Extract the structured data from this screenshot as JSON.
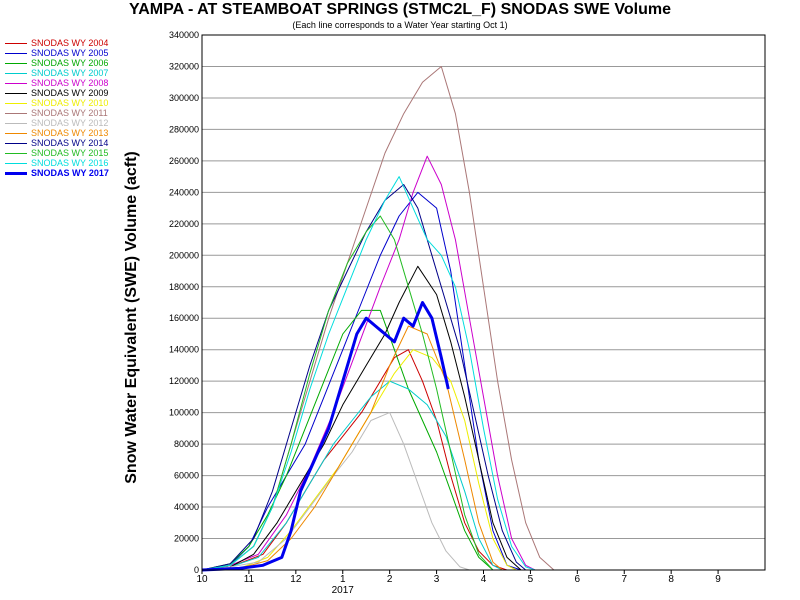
{
  "chart_data": {
    "type": "line",
    "title": "YAMPA - AT STEAMBOAT SPRINGS (STMC2L_F) SNODAS SWE Volume",
    "subtitle": "(Each line corresponds to a Water Year starting Oct 1)",
    "ylabel": "Snow Water Equivalent (SWE) Volume (acft)",
    "xlabel": "",
    "x_ticks": [
      "10",
      "11",
      "12",
      "1",
      "2",
      "3",
      "4",
      "5",
      "6",
      "7",
      "8",
      "9"
    ],
    "x_year_label": "2017",
    "y_ticks": [
      0,
      20000,
      40000,
      60000,
      80000,
      100000,
      120000,
      140000,
      160000,
      180000,
      200000,
      220000,
      240000,
      260000,
      280000,
      300000,
      320000,
      340000
    ],
    "ylim": [
      0,
      340000
    ],
    "xlim": [
      0,
      12
    ],
    "grid": "horizontal",
    "legend_position": "left",
    "series": [
      {
        "name": "SNODAS WY 2004",
        "color": "#cc0000",
        "width": 1,
        "points": [
          [
            0,
            0
          ],
          [
            0.6,
            2000
          ],
          [
            1.3,
            10000
          ],
          [
            1.8,
            30000
          ],
          [
            2.2,
            50000
          ],
          [
            2.6,
            70000
          ],
          [
            3,
            85000
          ],
          [
            3.4,
            100000
          ],
          [
            3.8,
            120000
          ],
          [
            4.1,
            135000
          ],
          [
            4.4,
            140000
          ],
          [
            4.7,
            120000
          ],
          [
            5,
            95000
          ],
          [
            5.3,
            60000
          ],
          [
            5.6,
            30000
          ],
          [
            5.9,
            12000
          ],
          [
            6.2,
            3000
          ],
          [
            6.5,
            0
          ]
        ]
      },
      {
        "name": "SNODAS WY 2005",
        "color": "#0000cc",
        "width": 1,
        "points": [
          [
            0,
            0
          ],
          [
            0.6,
            3000
          ],
          [
            1,
            15000
          ],
          [
            1.4,
            40000
          ],
          [
            1.8,
            60000
          ],
          [
            2.2,
            80000
          ],
          [
            2.6,
            110000
          ],
          [
            3,
            140000
          ],
          [
            3.4,
            170000
          ],
          [
            3.8,
            200000
          ],
          [
            4.2,
            225000
          ],
          [
            4.6,
            240000
          ],
          [
            5,
            230000
          ],
          [
            5.3,
            190000
          ],
          [
            5.6,
            130000
          ],
          [
            5.9,
            70000
          ],
          [
            6.2,
            25000
          ],
          [
            6.5,
            3000
          ],
          [
            6.8,
            0
          ]
        ]
      },
      {
        "name": "SNODAS WY 2006",
        "color": "#00aa00",
        "width": 1,
        "points": [
          [
            0,
            0
          ],
          [
            0.6,
            4000
          ],
          [
            1,
            15000
          ],
          [
            1.4,
            35000
          ],
          [
            1.8,
            60000
          ],
          [
            2.2,
            90000
          ],
          [
            2.6,
            120000
          ],
          [
            3,
            150000
          ],
          [
            3.4,
            165000
          ],
          [
            3.8,
            165000
          ],
          [
            4.1,
            140000
          ],
          [
            4.4,
            115000
          ],
          [
            4.7,
            95000
          ],
          [
            5,
            75000
          ],
          [
            5.3,
            50000
          ],
          [
            5.6,
            25000
          ],
          [
            5.9,
            8000
          ],
          [
            6.2,
            0
          ]
        ]
      },
      {
        "name": "SNODAS WY 2007",
        "color": "#00cccc",
        "width": 1,
        "points": [
          [
            0,
            0
          ],
          [
            0.6,
            2000
          ],
          [
            1.2,
            8000
          ],
          [
            1.8,
            30000
          ],
          [
            2.3,
            55000
          ],
          [
            2.8,
            80000
          ],
          [
            3.2,
            95000
          ],
          [
            3.6,
            110000
          ],
          [
            4,
            120000
          ],
          [
            4.4,
            115000
          ],
          [
            4.8,
            105000
          ],
          [
            5.2,
            85000
          ],
          [
            5.6,
            50000
          ],
          [
            5.9,
            20000
          ],
          [
            6.2,
            3000
          ],
          [
            6.4,
            0
          ]
        ]
      },
      {
        "name": "SNODAS WY 2008",
        "color": "#cc00cc",
        "width": 1,
        "points": [
          [
            0,
            0
          ],
          [
            0.6,
            3000
          ],
          [
            1.2,
            10000
          ],
          [
            1.8,
            35000
          ],
          [
            2.3,
            65000
          ],
          [
            2.8,
            100000
          ],
          [
            3.3,
            140000
          ],
          [
            3.8,
            180000
          ],
          [
            4.2,
            210000
          ],
          [
            4.5,
            240000
          ],
          [
            4.8,
            263000
          ],
          [
            5.1,
            245000
          ],
          [
            5.4,
            210000
          ],
          [
            5.7,
            160000
          ],
          [
            6,
            110000
          ],
          [
            6.3,
            60000
          ],
          [
            6.6,
            20000
          ],
          [
            6.9,
            3000
          ],
          [
            7.1,
            0
          ]
        ]
      },
      {
        "name": "SNODAS WY 2009",
        "color": "#000000",
        "width": 1,
        "points": [
          [
            0,
            0
          ],
          [
            0.6,
            2000
          ],
          [
            1.1,
            10000
          ],
          [
            1.6,
            30000
          ],
          [
            2.1,
            55000
          ],
          [
            2.6,
            80000
          ],
          [
            3,
            105000
          ],
          [
            3.5,
            130000
          ],
          [
            3.9,
            150000
          ],
          [
            4.2,
            170000
          ],
          [
            4.6,
            193000
          ],
          [
            5,
            175000
          ],
          [
            5.3,
            145000
          ],
          [
            5.6,
            110000
          ],
          [
            5.9,
            70000
          ],
          [
            6.2,
            30000
          ],
          [
            6.5,
            8000
          ],
          [
            6.8,
            0
          ]
        ]
      },
      {
        "name": "SNODAS WY 2010",
        "color": "#eeee00",
        "width": 1,
        "points": [
          [
            0,
            0
          ],
          [
            0.8,
            1000
          ],
          [
            1.4,
            8000
          ],
          [
            1.9,
            25000
          ],
          [
            2.4,
            45000
          ],
          [
            2.9,
            65000
          ],
          [
            3.3,
            85000
          ],
          [
            3.7,
            105000
          ],
          [
            4.1,
            125000
          ],
          [
            4.5,
            140000
          ],
          [
            4.9,
            135000
          ],
          [
            5.3,
            120000
          ],
          [
            5.6,
            95000
          ],
          [
            5.9,
            55000
          ],
          [
            6.2,
            20000
          ],
          [
            6.5,
            3000
          ],
          [
            6.7,
            0
          ]
        ]
      },
      {
        "name": "SNODAS WY 2011",
        "color": "#aa7777",
        "width": 1,
        "points": [
          [
            0,
            0
          ],
          [
            0.6,
            3000
          ],
          [
            1.1,
            15000
          ],
          [
            1.5,
            40000
          ],
          [
            1.9,
            80000
          ],
          [
            2.3,
            120000
          ],
          [
            2.7,
            160000
          ],
          [
            3.1,
            195000
          ],
          [
            3.5,
            230000
          ],
          [
            3.9,
            265000
          ],
          [
            4.3,
            290000
          ],
          [
            4.7,
            310000
          ],
          [
            5.1,
            320000
          ],
          [
            5.4,
            290000
          ],
          [
            5.7,
            240000
          ],
          [
            6,
            180000
          ],
          [
            6.3,
            120000
          ],
          [
            6.6,
            70000
          ],
          [
            6.9,
            30000
          ],
          [
            7.2,
            8000
          ],
          [
            7.5,
            0
          ]
        ]
      },
      {
        "name": "SNODAS WY 2012",
        "color": "#bbbbbb",
        "width": 1,
        "points": [
          [
            0,
            0
          ],
          [
            0.6,
            2000
          ],
          [
            1.2,
            5000
          ],
          [
            1.8,
            20000
          ],
          [
            2.3,
            40000
          ],
          [
            2.8,
            60000
          ],
          [
            3.2,
            75000
          ],
          [
            3.6,
            95000
          ],
          [
            4,
            100000
          ],
          [
            4.3,
            80000
          ],
          [
            4.6,
            55000
          ],
          [
            4.9,
            30000
          ],
          [
            5.2,
            12000
          ],
          [
            5.5,
            2000
          ],
          [
            5.7,
            0
          ]
        ]
      },
      {
        "name": "SNODAS WY 2013",
        "color": "#ee8800",
        "width": 1,
        "points": [
          [
            0,
            0
          ],
          [
            0.8,
            1000
          ],
          [
            1.4,
            6000
          ],
          [
            1.9,
            20000
          ],
          [
            2.4,
            40000
          ],
          [
            2.8,
            60000
          ],
          [
            3.2,
            80000
          ],
          [
            3.6,
            100000
          ],
          [
            4,
            130000
          ],
          [
            4.4,
            155000
          ],
          [
            4.8,
            150000
          ],
          [
            5.2,
            120000
          ],
          [
            5.6,
            70000
          ],
          [
            5.9,
            30000
          ],
          [
            6.2,
            5000
          ],
          [
            6.4,
            0
          ]
        ]
      },
      {
        "name": "SNODAS WY 2014",
        "color": "#000088",
        "width": 1,
        "points": [
          [
            0,
            0
          ],
          [
            0.6,
            4000
          ],
          [
            1.1,
            20000
          ],
          [
            1.5,
            50000
          ],
          [
            1.9,
            90000
          ],
          [
            2.3,
            130000
          ],
          [
            2.7,
            165000
          ],
          [
            3.1,
            190000
          ],
          [
            3.5,
            215000
          ],
          [
            3.9,
            235000
          ],
          [
            4.3,
            245000
          ],
          [
            4.6,
            230000
          ],
          [
            4.9,
            200000
          ],
          [
            5.2,
            170000
          ],
          [
            5.5,
            140000
          ],
          [
            5.8,
            100000
          ],
          [
            6.1,
            60000
          ],
          [
            6.4,
            25000
          ],
          [
            6.7,
            5000
          ],
          [
            6.9,
            0
          ]
        ]
      },
      {
        "name": "SNODAS WY 2015",
        "color": "#22bb22",
        "width": 1,
        "points": [
          [
            0,
            0
          ],
          [
            0.6,
            3000
          ],
          [
            1.1,
            15000
          ],
          [
            1.5,
            40000
          ],
          [
            1.9,
            80000
          ],
          [
            2.3,
            125000
          ],
          [
            2.7,
            165000
          ],
          [
            3.1,
            195000
          ],
          [
            3.5,
            215000
          ],
          [
            3.8,
            225000
          ],
          [
            4.1,
            210000
          ],
          [
            4.4,
            180000
          ],
          [
            4.7,
            150000
          ],
          [
            5,
            115000
          ],
          [
            5.3,
            75000
          ],
          [
            5.6,
            35000
          ],
          [
            5.9,
            10000
          ],
          [
            6.2,
            0
          ]
        ]
      },
      {
        "name": "SNODAS WY 2016",
        "color": "#00dddd",
        "width": 1,
        "points": [
          [
            0,
            0
          ],
          [
            0.6,
            3000
          ],
          [
            1.1,
            15000
          ],
          [
            1.5,
            40000
          ],
          [
            1.9,
            75000
          ],
          [
            2.3,
            115000
          ],
          [
            2.7,
            150000
          ],
          [
            3.1,
            180000
          ],
          [
            3.5,
            210000
          ],
          [
            3.9,
            235000
          ],
          [
            4.2,
            250000
          ],
          [
            4.5,
            230000
          ],
          [
            4.8,
            210000
          ],
          [
            5.1,
            200000
          ],
          [
            5.4,
            180000
          ],
          [
            5.7,
            140000
          ],
          [
            6,
            90000
          ],
          [
            6.3,
            45000
          ],
          [
            6.6,
            15000
          ],
          [
            6.9,
            2000
          ],
          [
            7.1,
            0
          ]
        ]
      },
      {
        "name": "SNODAS WY 2017",
        "color": "#0000ee",
        "width": 3,
        "points": [
          [
            0,
            0
          ],
          [
            0.8,
            1000
          ],
          [
            1.3,
            3000
          ],
          [
            1.7,
            8000
          ],
          [
            1.9,
            25000
          ],
          [
            2.1,
            50000
          ],
          [
            2.4,
            70000
          ],
          [
            2.7,
            90000
          ],
          [
            3,
            120000
          ],
          [
            3.3,
            150000
          ],
          [
            3.5,
            160000
          ],
          [
            3.7,
            155000
          ],
          [
            3.9,
            150000
          ],
          [
            4.1,
            145000
          ],
          [
            4.3,
            160000
          ],
          [
            4.5,
            155000
          ],
          [
            4.7,
            170000
          ],
          [
            4.9,
            160000
          ],
          [
            5.1,
            135000
          ],
          [
            5.25,
            115000
          ]
        ]
      }
    ]
  }
}
